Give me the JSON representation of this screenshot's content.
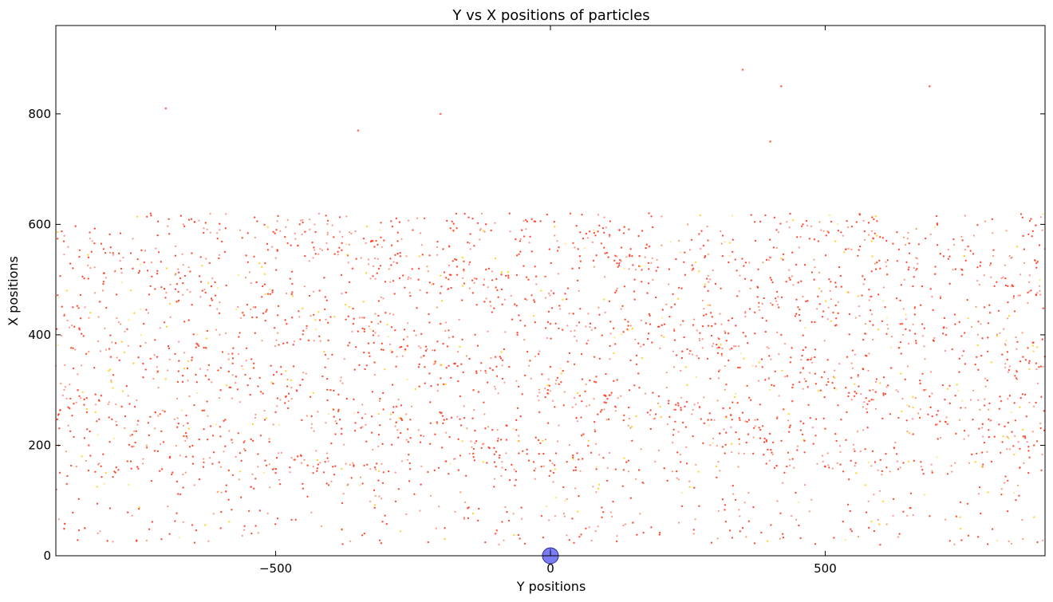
{
  "chart_data": {
    "type": "scatter",
    "title": "Y vs X positions of particles",
    "xlabel": "Y positions",
    "ylabel": "X positions",
    "xlim": [
      -900,
      900
    ],
    "ylim": [
      0,
      960
    ],
    "xticks": [
      {
        "value": -500,
        "label": "−500"
      },
      {
        "value": 0,
        "label": "0"
      },
      {
        "value": 500,
        "label": "500"
      }
    ],
    "yticks": [
      {
        "value": 0,
        "label": "0"
      },
      {
        "value": 200,
        "label": "200"
      },
      {
        "value": 400,
        "label": "400"
      },
      {
        "value": 600,
        "label": "600"
      },
      {
        "value": 800,
        "label": "800"
      }
    ],
    "grid": false,
    "legend": "none",
    "colors": {
      "particles_primary": "#ff3b1f",
      "particles_secondary": "#ffd21a",
      "marker": "#5b5bf0"
    },
    "series": [
      {
        "description_note": "",
        "points": [
          {
            "x": -880,
            "y": 480
          },
          {
            "x": -860,
            "y": 300
          },
          {
            "x": -840,
            "y": 200
          },
          {
            "x": -820,
            "y": 460
          },
          {
            "x": -800,
            "y": 360
          },
          {
            "x": -780,
            "y": 270
          },
          {
            "x": -760,
            "y": 520
          },
          {
            "x": -740,
            "y": 420
          },
          {
            "x": -720,
            "y": 190
          },
          {
            "x": -700,
            "y": 320
          },
          {
            "x": -680,
            "y": 460
          },
          {
            "x": -660,
            "y": 240
          },
          {
            "x": -640,
            "y": 380
          },
          {
            "x": -620,
            "y": 530
          },
          {
            "x": -600,
            "y": 300
          },
          {
            "x": -580,
            "y": 210
          },
          {
            "x": -560,
            "y": 440
          },
          {
            "x": -540,
            "y": 340
          },
          {
            "x": -520,
            "y": 510
          },
          {
            "x": -500,
            "y": 260
          },
          {
            "x": -480,
            "y": 420
          },
          {
            "x": -460,
            "y": 180
          },
          {
            "x": -440,
            "y": 390
          },
          {
            "x": -420,
            "y": 480
          },
          {
            "x": -400,
            "y": 300
          },
          {
            "x": -380,
            "y": 230
          },
          {
            "x": -360,
            "y": 520
          },
          {
            "x": -340,
            "y": 460
          },
          {
            "x": -320,
            "y": 350
          },
          {
            "x": -300,
            "y": 440
          },
          {
            "x": -280,
            "y": 270
          },
          {
            "x": -260,
            "y": 380
          },
          {
            "x": -240,
            "y": 500
          },
          {
            "x": -220,
            "y": 330
          },
          {
            "x": -200,
            "y": 420
          },
          {
            "x": -180,
            "y": 250
          },
          {
            "x": -160,
            "y": 540
          },
          {
            "x": -140,
            "y": 300
          },
          {
            "x": -120,
            "y": 460
          },
          {
            "x": -100,
            "y": 360
          },
          {
            "x": -80,
            "y": 210
          },
          {
            "x": -60,
            "y": 400
          },
          {
            "x": -40,
            "y": 500
          },
          {
            "x": -20,
            "y": 260
          },
          {
            "x": 0,
            "y": 420
          },
          {
            "x": 20,
            "y": 330
          },
          {
            "x": 40,
            "y": 520
          },
          {
            "x": 60,
            "y": 220
          },
          {
            "x": 80,
            "y": 360
          },
          {
            "x": 100,
            "y": 290
          },
          {
            "x": 120,
            "y": 480
          },
          {
            "x": 140,
            "y": 410
          },
          {
            "x": 160,
            "y": 330
          },
          {
            "x": 180,
            "y": 560
          },
          {
            "x": 200,
            "y": 270
          },
          {
            "x": 220,
            "y": 450
          },
          {
            "x": 240,
            "y": 370
          },
          {
            "x": 260,
            "y": 520
          },
          {
            "x": 280,
            "y": 240
          },
          {
            "x": 300,
            "y": 420
          },
          {
            "x": 320,
            "y": 310
          },
          {
            "x": 340,
            "y": 470
          },
          {
            "x": 360,
            "y": 220
          },
          {
            "x": 380,
            "y": 350
          },
          {
            "x": 400,
            "y": 540
          },
          {
            "x": 420,
            "y": 400
          },
          {
            "x": 440,
            "y": 280
          },
          {
            "x": 460,
            "y": 340
          },
          {
            "x": 480,
            "y": 500
          },
          {
            "x": 500,
            "y": 230
          },
          {
            "x": 520,
            "y": 430
          },
          {
            "x": 540,
            "y": 360
          },
          {
            "x": 560,
            "y": 470
          },
          {
            "x": 580,
            "y": 280
          },
          {
            "x": 600,
            "y": 520
          },
          {
            "x": 620,
            "y": 340
          },
          {
            "x": 640,
            "y": 420
          },
          {
            "x": 660,
            "y": 220
          },
          {
            "x": 680,
            "y": 300
          },
          {
            "x": 700,
            "y": 510
          },
          {
            "x": 720,
            "y": 400
          },
          {
            "x": 740,
            "y": 310
          },
          {
            "x": 760,
            "y": 560
          },
          {
            "x": 780,
            "y": 230
          },
          {
            "x": 800,
            "y": 440
          },
          {
            "x": 820,
            "y": 280
          },
          {
            "x": 840,
            "y": 490
          },
          {
            "x": 860,
            "y": 360
          },
          {
            "x": 880,
            "y": 200
          },
          {
            "x": -880,
            "y": 130
          },
          {
            "x": 880,
            "y": 70
          },
          {
            "x": -500,
            "y": 150
          },
          {
            "x": 350,
            "y": 880
          },
          {
            "x": 420,
            "y": 850
          },
          {
            "x": 690,
            "y": 850
          },
          {
            "x": -700,
            "y": 810
          },
          {
            "x": -200,
            "y": 800
          },
          {
            "x": 400,
            "y": 750
          },
          {
            "x": -350,
            "y": 770
          },
          {
            "x": 50,
            "y": 80
          },
          {
            "x": -100,
            "y": 40
          },
          {
            "x": 150,
            "y": 60
          },
          {
            "x": 600,
            "y": 20
          },
          {
            "x": -600,
            "y": 50
          }
        ]
      }
    ],
    "markers": [
      {
        "x": 0,
        "y": 0,
        "color": "#5b5bf0"
      }
    ]
  }
}
